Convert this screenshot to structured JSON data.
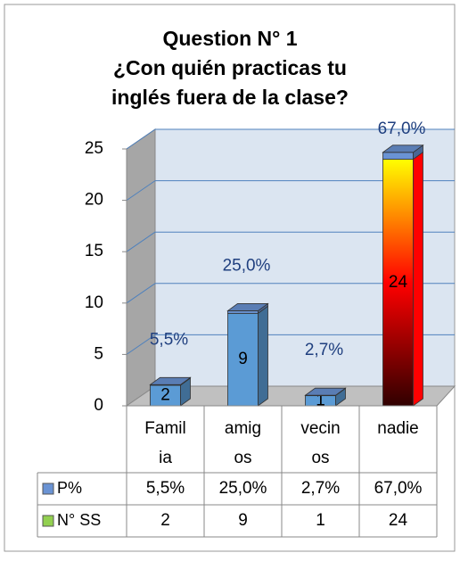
{
  "chart_data": {
    "type": "stacked_bar_3d",
    "title": [
      "Question N° 1",
      "¿Con quién practicas tu",
      "inglés fuera de la clase?"
    ],
    "categories": [
      [
        "Famil",
        "ia"
      ],
      [
        "amig",
        "os"
      ],
      [
        "vecin",
        "os"
      ],
      [
        "nadie"
      ]
    ],
    "ylim": [
      0,
      25
    ],
    "yticks": [
      0,
      5,
      10,
      15,
      20,
      25
    ],
    "grid": true,
    "series": [
      {
        "name": "N° SS",
        "color": "#92d050",
        "values": [
          2,
          9,
          1,
          24
        ],
        "point_colors": [
          "#5b9bd5",
          "#5b9bd5",
          "#5b9bd5",
          [
            "#ffff00",
            "#ff0000",
            "#300000"
          ]
        ]
      },
      {
        "name": "P%",
        "color": "#6a93d4",
        "values": [
          0.055,
          0.25,
          0.027,
          0.67
        ],
        "value_labels": [
          "5,5%",
          "25,0%",
          "2,7%",
          "67,0%"
        ]
      }
    ],
    "table_order": [
      1,
      0
    ]
  }
}
